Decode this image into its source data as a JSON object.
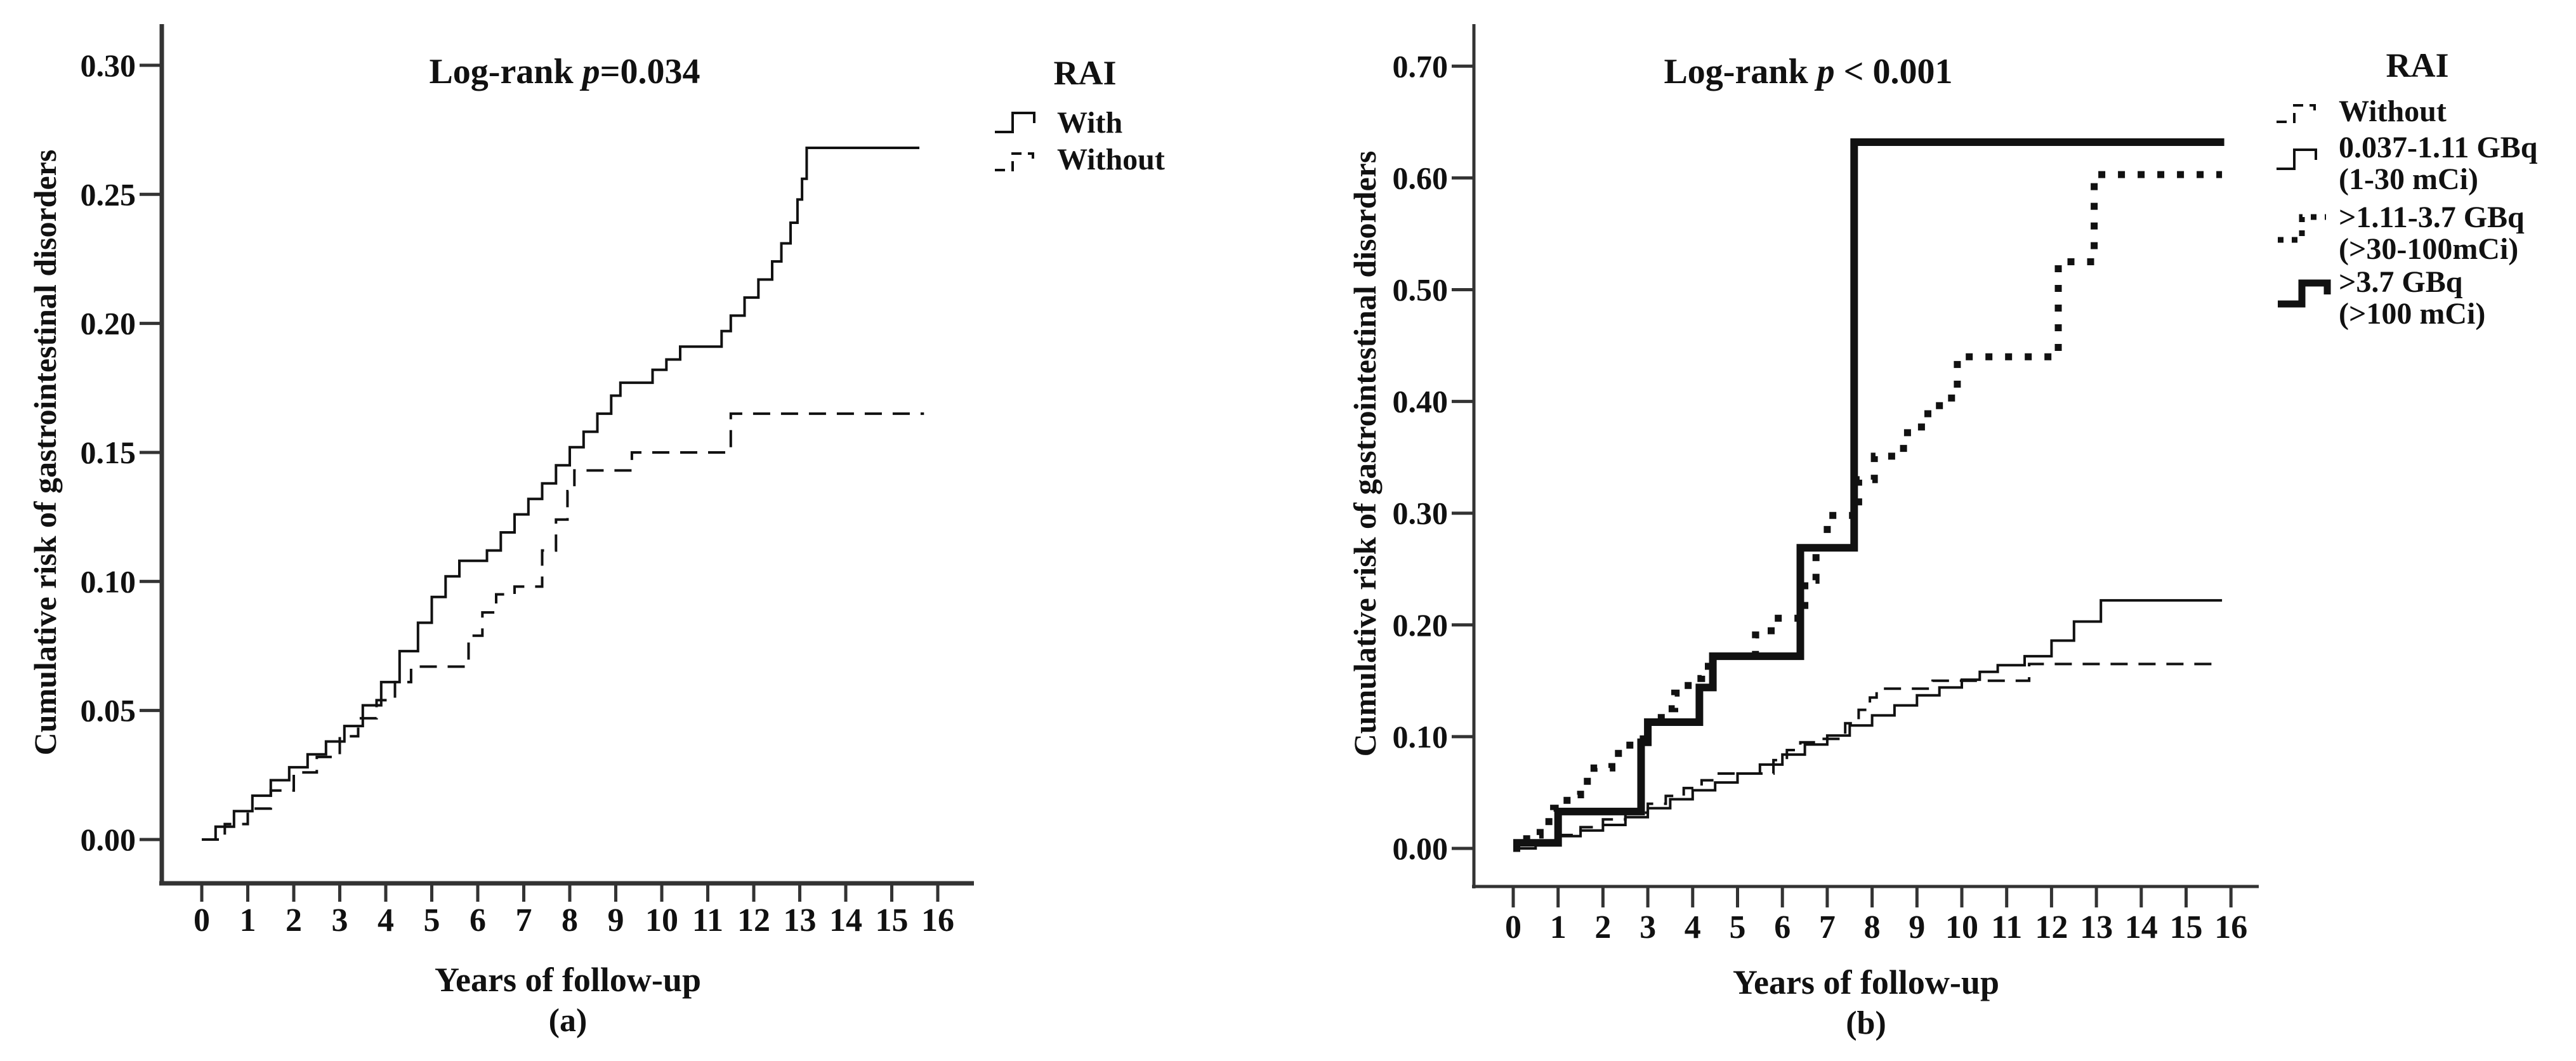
{
  "chart_data": [
    {
      "id": "a",
      "type": "line",
      "subtype": "step",
      "title": {
        "prefix": "Log-rank ",
        "p_symbol": "p",
        "rest": "=0.034"
      },
      "xlabel": "Years of follow-up",
      "ylabel": "Cumulative risk of gastrointestinal disorders",
      "caption": "(a)",
      "xlim": [
        0,
        16
      ],
      "ylim": [
        0,
        0.3
      ],
      "grid": false,
      "xticks": [
        0,
        1,
        2,
        3,
        4,
        5,
        6,
        7,
        8,
        9,
        10,
        11,
        12,
        13,
        14,
        15,
        16
      ],
      "yticks": [
        0.0,
        0.05,
        0.1,
        0.15,
        0.2,
        0.25,
        0.3
      ],
      "legend": {
        "title": "RAI",
        "position": "right"
      },
      "series": [
        {
          "name": "With",
          "label_lines": [
            "With"
          ],
          "style": "solid",
          "width": 4,
          "color": "#111111",
          "points": [
            [
              0,
              0
            ],
            [
              0.3,
              0.005
            ],
            [
              0.7,
              0.011
            ],
            [
              1.1,
              0.017
            ],
            [
              1.5,
              0.023
            ],
            [
              1.9,
              0.028
            ],
            [
              2.3,
              0.033
            ],
            [
              2.7,
              0.038
            ],
            [
              3.1,
              0.044
            ],
            [
              3.5,
              0.052
            ],
            [
              3.9,
              0.061
            ],
            [
              4.3,
              0.073
            ],
            [
              4.7,
              0.084
            ],
            [
              5.0,
              0.094
            ],
            [
              5.3,
              0.102
            ],
            [
              5.6,
              0.108
            ],
            [
              6.2,
              0.112
            ],
            [
              6.5,
              0.119
            ],
            [
              6.8,
              0.126
            ],
            [
              7.1,
              0.132
            ],
            [
              7.4,
              0.138
            ],
            [
              7.7,
              0.145
            ],
            [
              8.0,
              0.152
            ],
            [
              8.3,
              0.158
            ],
            [
              8.6,
              0.165
            ],
            [
              8.9,
              0.172
            ],
            [
              9.1,
              0.177
            ],
            [
              9.8,
              0.182
            ],
            [
              10.1,
              0.186
            ],
            [
              10.4,
              0.191
            ],
            [
              11.3,
              0.197
            ],
            [
              11.5,
              0.203
            ],
            [
              11.8,
              0.21
            ],
            [
              12.1,
              0.217
            ],
            [
              12.4,
              0.224
            ],
            [
              12.6,
              0.231
            ],
            [
              12.8,
              0.239
            ],
            [
              12.95,
              0.248
            ],
            [
              13.05,
              0.256
            ],
            [
              13.15,
              0.268
            ],
            [
              15.6,
              0.268
            ]
          ]
        },
        {
          "name": "Without",
          "label_lines": [
            "Without"
          ],
          "style": "dashed",
          "width": 4,
          "color": "#111111",
          "points": [
            [
              0,
              0
            ],
            [
              0.5,
              0.006
            ],
            [
              1.0,
              0.012
            ],
            [
              1.5,
              0.019
            ],
            [
              2.0,
              0.026
            ],
            [
              2.5,
              0.032
            ],
            [
              3.0,
              0.04
            ],
            [
              3.4,
              0.047
            ],
            [
              3.8,
              0.054
            ],
            [
              4.2,
              0.061
            ],
            [
              4.55,
              0.067
            ],
            [
              5.8,
              0.079
            ],
            [
              6.1,
              0.088
            ],
            [
              6.4,
              0.095
            ],
            [
              6.8,
              0.098
            ],
            [
              7.4,
              0.112
            ],
            [
              7.7,
              0.124
            ],
            [
              7.95,
              0.135
            ],
            [
              8.1,
              0.143
            ],
            [
              9.35,
              0.15
            ],
            [
              11.5,
              0.165
            ],
            [
              15.7,
              0.165
            ]
          ]
        }
      ]
    },
    {
      "id": "b",
      "type": "line",
      "subtype": "step",
      "title": {
        "prefix": "Log-rank ",
        "p_symbol": "p",
        "rest": " < 0.001"
      },
      "xlabel": "Years of follow-up",
      "ylabel": "Cumulative risk of gastrointestinal disorders",
      "caption": "(b)",
      "xlim": [
        0,
        16
      ],
      "ylim": [
        0,
        0.7
      ],
      "grid": false,
      "xticks": [
        0,
        1,
        2,
        3,
        4,
        5,
        6,
        7,
        8,
        9,
        10,
        11,
        12,
        13,
        14,
        15,
        16
      ],
      "yticks": [
        0.0,
        0.1,
        0.2,
        0.3,
        0.4,
        0.5,
        0.6,
        0.7
      ],
      "legend": {
        "title": "RAI",
        "position": "right"
      },
      "series": [
        {
          "name": "Without",
          "label_lines": [
            "Without"
          ],
          "style": "dashed",
          "width": 4,
          "color": "#111111",
          "points": [
            [
              0,
              0
            ],
            [
              0.5,
              0.006
            ],
            [
              1.0,
              0.012
            ],
            [
              1.5,
              0.019
            ],
            [
              2.0,
              0.026
            ],
            [
              2.5,
              0.032
            ],
            [
              3.0,
              0.04
            ],
            [
              3.4,
              0.047
            ],
            [
              3.8,
              0.054
            ],
            [
              4.2,
              0.061
            ],
            [
              4.55,
              0.067
            ],
            [
              5.8,
              0.079
            ],
            [
              6.1,
              0.088
            ],
            [
              6.4,
              0.095
            ],
            [
              6.8,
              0.098
            ],
            [
              7.4,
              0.112
            ],
            [
              7.7,
              0.124
            ],
            [
              7.95,
              0.135
            ],
            [
              8.1,
              0.143
            ],
            [
              9.35,
              0.15
            ],
            [
              11.5,
              0.165
            ],
            [
              15.6,
              0.165
            ]
          ]
        },
        {
          "name": "0.037-1.11 GBq (1-30 mCi)",
          "label_lines": [
            "0.037-1.11 GBq",
            "(1-30 mCi)"
          ],
          "style": "solid",
          "width": 4,
          "color": "#111111",
          "points": [
            [
              0,
              0
            ],
            [
              0.5,
              0.005
            ],
            [
              1.0,
              0.011
            ],
            [
              1.5,
              0.016
            ],
            [
              2.0,
              0.021
            ],
            [
              2.5,
              0.028
            ],
            [
              3.0,
              0.036
            ],
            [
              3.5,
              0.044
            ],
            [
              4.0,
              0.052
            ],
            [
              4.5,
              0.059
            ],
            [
              5.0,
              0.067
            ],
            [
              5.5,
              0.075
            ],
            [
              6.0,
              0.084
            ],
            [
              6.5,
              0.093
            ],
            [
              7.0,
              0.101
            ],
            [
              7.5,
              0.11
            ],
            [
              8.0,
              0.119
            ],
            [
              8.5,
              0.128
            ],
            [
              9.0,
              0.137
            ],
            [
              9.5,
              0.144
            ],
            [
              10.0,
              0.151
            ],
            [
              10.4,
              0.158
            ],
            [
              10.8,
              0.164
            ],
            [
              11.4,
              0.172
            ],
            [
              12.0,
              0.186
            ],
            [
              12.5,
              0.203
            ],
            [
              13.1,
              0.222
            ],
            [
              15.8,
              0.222
            ]
          ]
        },
        {
          "name": ">1.11-3.7 GBq (>30-100mCi)",
          "label_lines": [
            ">1.11-3.7 GBq",
            "(>30-100mCi)"
          ],
          "style": "dotted",
          "width": 11,
          "color": "#111111",
          "points": [
            [
              0,
              0
            ],
            [
              0.3,
              0.012
            ],
            [
              0.6,
              0.024
            ],
            [
              0.9,
              0.036
            ],
            [
              1.2,
              0.048
            ],
            [
              1.5,
              0.06
            ],
            [
              1.8,
              0.072
            ],
            [
              2.2,
              0.085
            ],
            [
              2.6,
              0.098
            ],
            [
              3.0,
              0.112
            ],
            [
              3.3,
              0.125
            ],
            [
              3.6,
              0.139
            ],
            [
              3.9,
              0.152
            ],
            [
              4.2,
              0.163
            ],
            [
              4.4,
              0.172
            ],
            [
              5.4,
              0.191
            ],
            [
              5.75,
              0.206
            ],
            [
              6.5,
              0.24
            ],
            [
              6.75,
              0.269
            ],
            [
              7.0,
              0.298
            ],
            [
              7.7,
              0.33
            ],
            [
              8.05,
              0.351
            ],
            [
              8.7,
              0.372
            ],
            [
              9.1,
              0.389
            ],
            [
              9.5,
              0.403
            ],
            [
              9.9,
              0.44
            ],
            [
              12.15,
              0.525
            ],
            [
              12.95,
              0.603
            ],
            [
              15.8,
              0.603
            ]
          ]
        },
        {
          "name": ">3.7 GBq (>100 mCi)",
          "label_lines": [
            ">3.7 GBq",
            "(>100 mCi)"
          ],
          "style": "solid",
          "width": 12,
          "color": "#111111",
          "points": [
            [
              0,
              0.005
            ],
            [
              1.0,
              0.033
            ],
            [
              2.85,
              0.095
            ],
            [
              3.0,
              0.113
            ],
            [
              4.15,
              0.144
            ],
            [
              4.45,
              0.172
            ],
            [
              6.4,
              0.269
            ],
            [
              7.6,
              0.632
            ],
            [
              15.85,
              0.632
            ]
          ]
        }
      ]
    }
  ]
}
